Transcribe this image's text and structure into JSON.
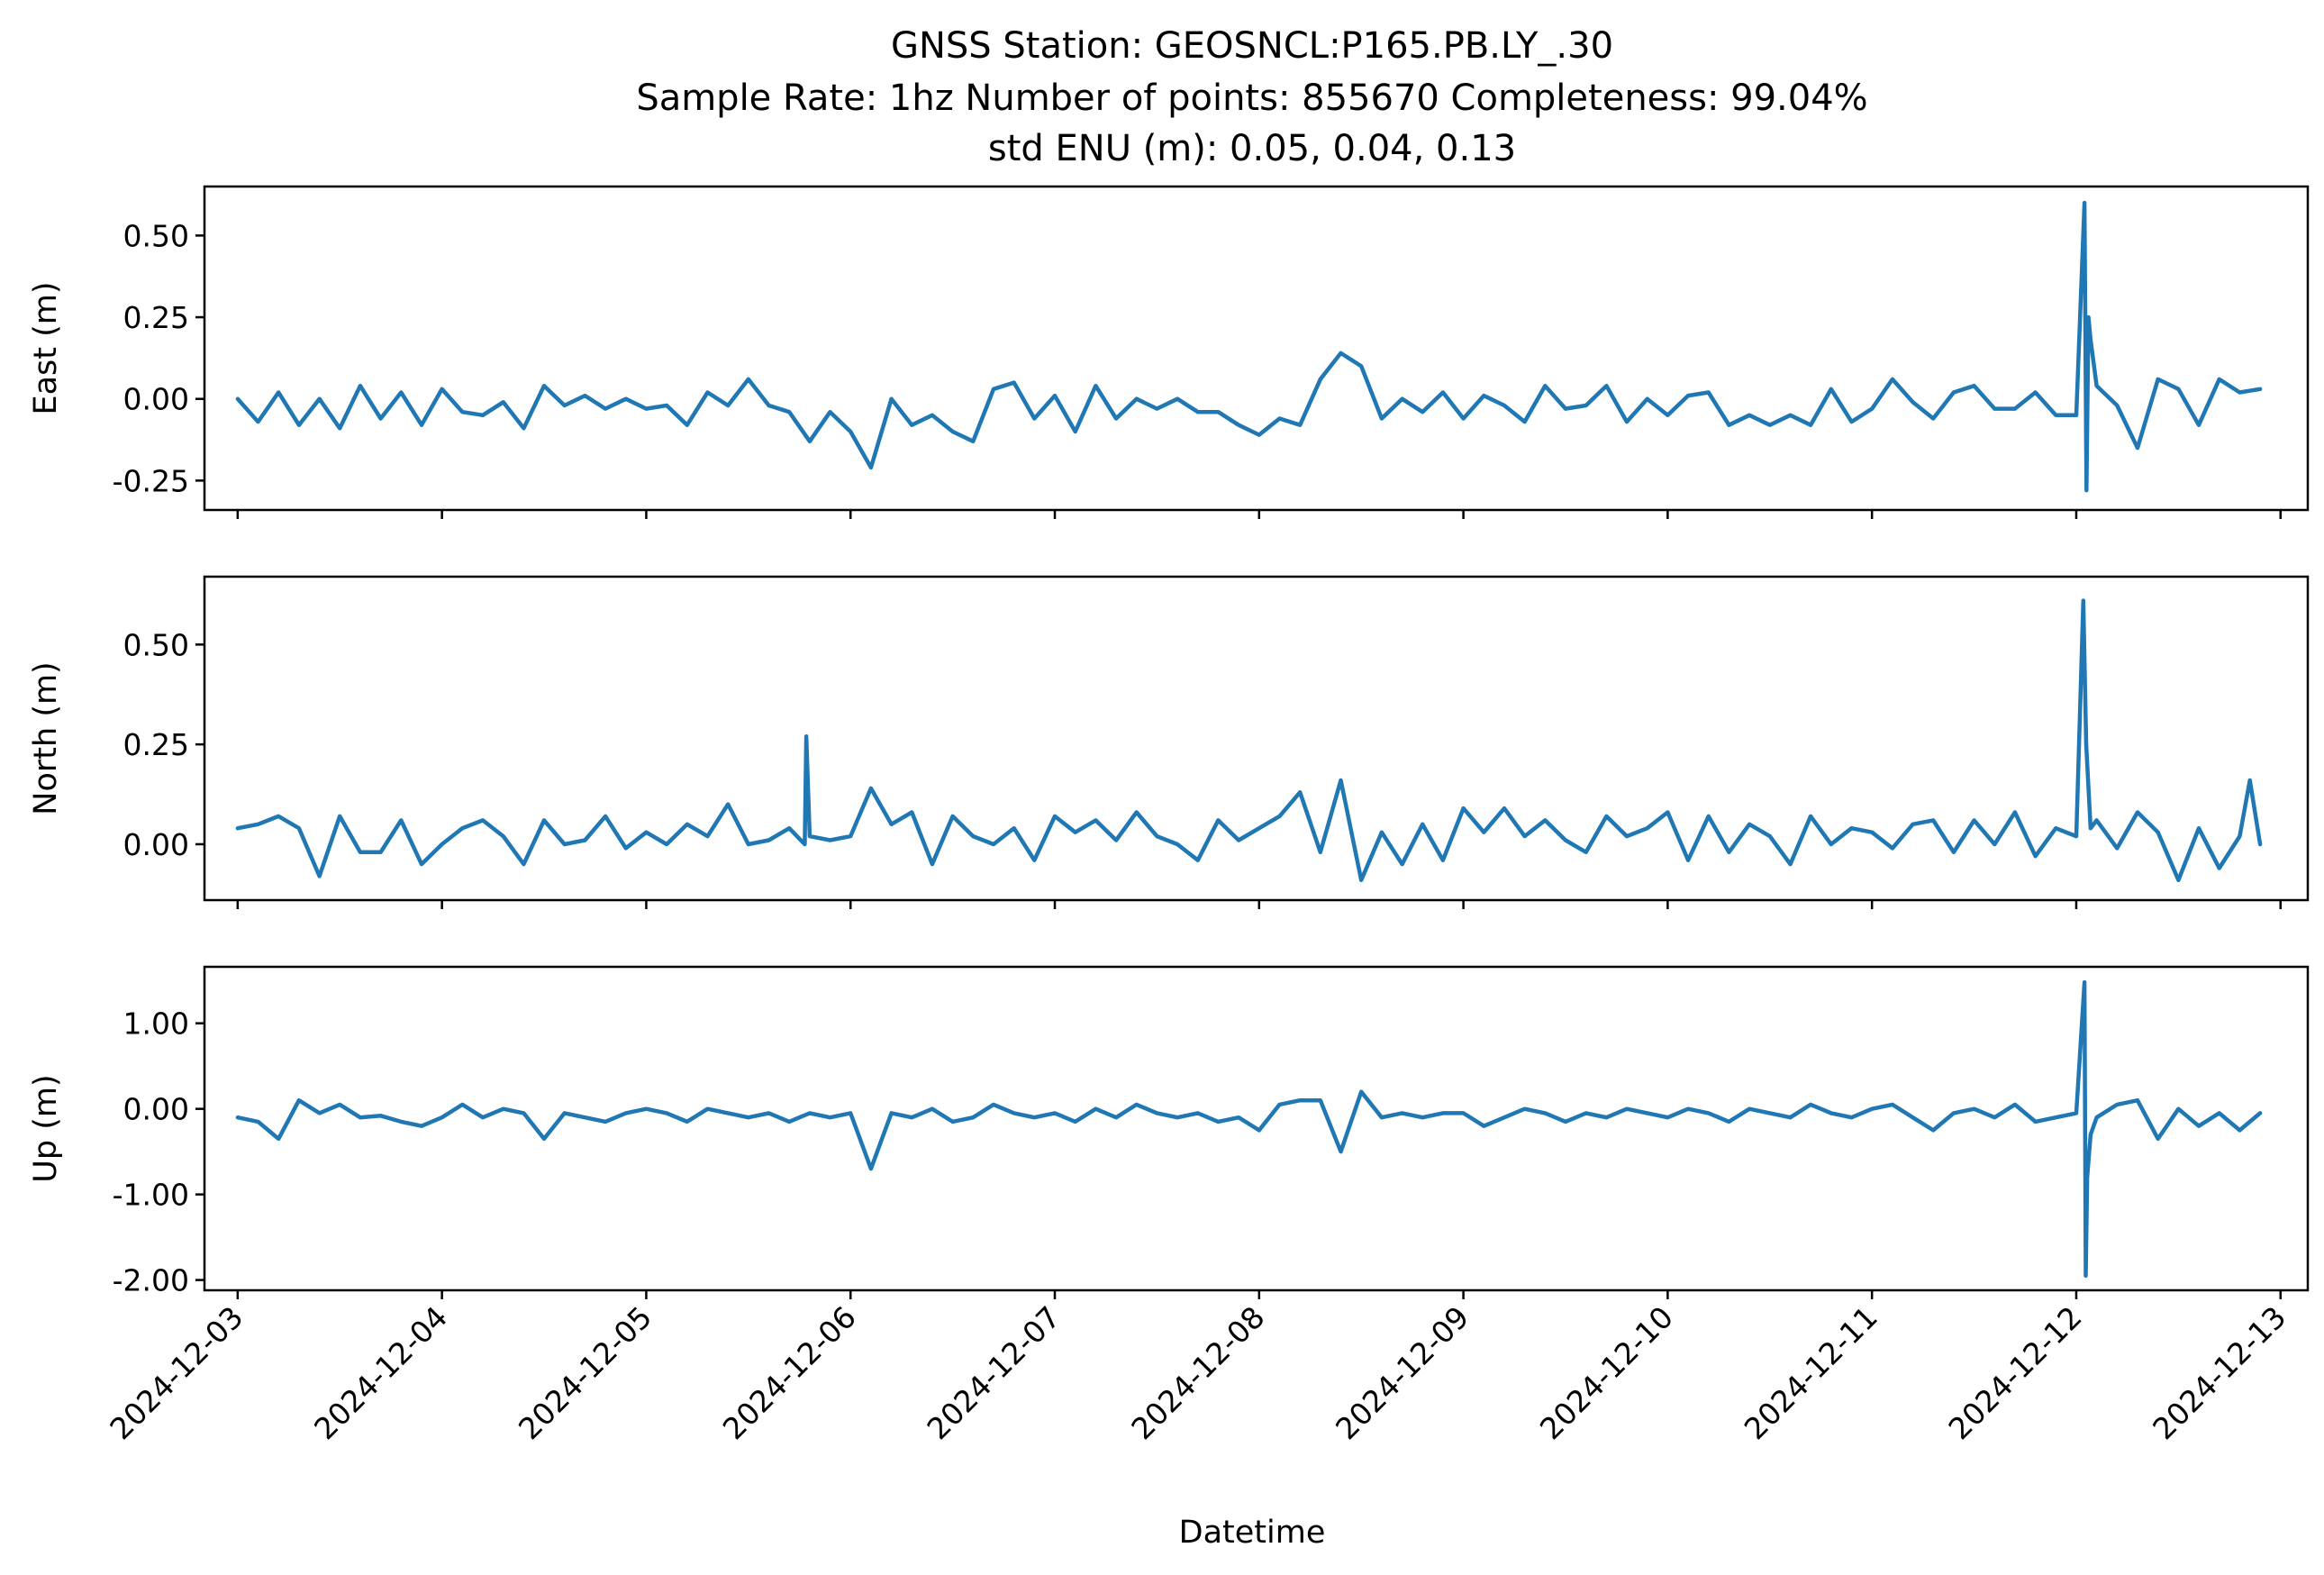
{
  "title": {
    "line1": "GNSS Station: GEOSNCL:P165.PB.LY_.30",
    "line2": "Sample Rate: 1hz   Number of points: 855670    Completeness:  99.04%",
    "line3": "std ENU (m):  0.05, 0.04, 0.13"
  },
  "chart_data": [
    {
      "type": "line",
      "ylabel": "East (m)",
      "xlabel": "",
      "xlim": [
        "2024-12-02T20:06",
        "2024-12-13T03:12"
      ],
      "ylim": [
        -0.34,
        0.65
      ],
      "yticks": [
        0.5,
        0.25,
        0.0,
        -0.25
      ],
      "ytick_labels": [
        "0.50",
        "0.25",
        "0.00",
        "-0.25"
      ],
      "color": "#1f77b4",
      "series": [
        {
          "x": [
            "2024-12-03T00:00",
            "2024-12-03T02:24",
            "2024-12-03T04:48",
            "2024-12-03T07:12",
            "2024-12-03T09:36",
            "2024-12-03T12:00",
            "2024-12-03T14:24",
            "2024-12-03T16:48",
            "2024-12-03T19:12",
            "2024-12-03T21:36",
            "2024-12-04T00:00",
            "2024-12-04T02:24",
            "2024-12-04T04:48",
            "2024-12-04T07:12",
            "2024-12-04T09:36",
            "2024-12-04T12:00",
            "2024-12-04T14:24",
            "2024-12-04T16:48",
            "2024-12-04T19:12",
            "2024-12-04T21:36",
            "2024-12-05T00:00",
            "2024-12-05T02:24",
            "2024-12-05T04:48",
            "2024-12-05T07:12",
            "2024-12-05T09:36",
            "2024-12-05T12:00",
            "2024-12-05T14:24",
            "2024-12-05T16:48",
            "2024-12-05T19:12",
            "2024-12-05T21:36",
            "2024-12-06T00:00",
            "2024-12-06T02:24",
            "2024-12-06T04:48",
            "2024-12-06T07:12",
            "2024-12-06T09:36",
            "2024-12-06T12:00",
            "2024-12-06T14:24",
            "2024-12-06T16:48",
            "2024-12-06T19:12",
            "2024-12-06T21:36",
            "2024-12-07T00:00",
            "2024-12-07T02:24",
            "2024-12-07T04:48",
            "2024-12-07T07:12",
            "2024-12-07T09:36",
            "2024-12-07T12:00",
            "2024-12-07T14:24",
            "2024-12-07T16:48",
            "2024-12-07T19:12",
            "2024-12-07T21:36",
            "2024-12-08T00:00",
            "2024-12-08T02:24",
            "2024-12-08T04:48",
            "2024-12-08T07:12",
            "2024-12-08T09:36",
            "2024-12-08T12:00",
            "2024-12-08T14:24",
            "2024-12-08T16:48",
            "2024-12-08T19:12",
            "2024-12-08T21:36",
            "2024-12-09T00:00",
            "2024-12-09T02:24",
            "2024-12-09T04:48",
            "2024-12-09T07:12",
            "2024-12-09T09:36",
            "2024-12-09T12:00",
            "2024-12-09T14:24",
            "2024-12-09T16:48",
            "2024-12-09T19:12",
            "2024-12-09T21:36",
            "2024-12-10T00:00",
            "2024-12-10T02:24",
            "2024-12-10T04:48",
            "2024-12-10T07:12",
            "2024-12-10T09:36",
            "2024-12-10T12:00",
            "2024-12-10T14:24",
            "2024-12-10T16:48",
            "2024-12-10T19:12",
            "2024-12-10T21:36",
            "2024-12-11T00:00",
            "2024-12-11T02:24",
            "2024-12-11T04:48",
            "2024-12-11T07:12",
            "2024-12-11T09:36",
            "2024-12-11T12:00",
            "2024-12-11T14:24",
            "2024-12-11T16:48",
            "2024-12-11T19:12",
            "2024-12-11T21:36",
            "2024-12-12T00:00",
            "2024-12-12T00:58",
            "2024-12-12T01:12",
            "2024-12-12T01:26",
            "2024-12-12T01:41",
            "2024-12-12T02:24",
            "2024-12-12T04:48",
            "2024-12-12T07:12",
            "2024-12-12T09:36",
            "2024-12-12T12:00",
            "2024-12-12T14:24",
            "2024-12-12T16:48",
            "2024-12-12T19:12",
            "2024-12-12T21:36"
          ],
          "y": [
            0.0,
            -0.07,
            0.02,
            -0.08,
            0.0,
            -0.09,
            0.04,
            -0.06,
            0.02,
            -0.08,
            0.03,
            -0.04,
            -0.05,
            -0.01,
            -0.09,
            0.04,
            -0.02,
            0.01,
            -0.03,
            0.0,
            -0.03,
            -0.02,
            -0.08,
            0.02,
            -0.02,
            0.06,
            -0.02,
            -0.04,
            -0.13,
            -0.04,
            -0.1,
            -0.21,
            0.0,
            -0.08,
            -0.05,
            -0.1,
            -0.13,
            0.03,
            0.05,
            -0.06,
            0.01,
            -0.1,
            0.04,
            -0.06,
            0.0,
            -0.03,
            0.0,
            -0.04,
            -0.04,
            -0.08,
            -0.11,
            -0.06,
            -0.08,
            0.06,
            0.14,
            0.1,
            -0.06,
            0.0,
            -0.04,
            0.02,
            -0.06,
            0.01,
            -0.02,
            -0.07,
            0.04,
            -0.03,
            -0.02,
            0.04,
            -0.07,
            0.0,
            -0.05,
            0.01,
            0.02,
            -0.08,
            -0.05,
            -0.08,
            -0.05,
            -0.08,
            0.03,
            -0.07,
            -0.03,
            0.06,
            -0.01,
            -0.06,
            0.02,
            0.04,
            -0.03,
            -0.03,
            0.02,
            -0.05,
            -0.05,
            0.6,
            -0.28,
            0.25,
            0.18,
            0.04,
            -0.02,
            -0.15,
            0.06,
            0.03,
            -0.08,
            0.06,
            0.02,
            0.03
          ]
        }
      ]
    },
    {
      "type": "line",
      "ylabel": "North (m)",
      "xlabel": "",
      "xlim": [
        "2024-12-02T20:06",
        "2024-12-13T03:12"
      ],
      "ylim": [
        -0.14,
        0.67
      ],
      "yticks": [
        0.5,
        0.25,
        0.0
      ],
      "ytick_labels": [
        "0.50",
        "0.25",
        "0.00"
      ],
      "color": "#1f77b4",
      "series": [
        {
          "x": [
            "2024-12-03T00:00",
            "2024-12-03T02:24",
            "2024-12-03T04:48",
            "2024-12-03T07:12",
            "2024-12-03T09:36",
            "2024-12-03T12:00",
            "2024-12-03T14:24",
            "2024-12-03T16:48",
            "2024-12-03T19:12",
            "2024-12-03T21:36",
            "2024-12-04T00:00",
            "2024-12-04T02:24",
            "2024-12-04T04:48",
            "2024-12-04T07:12",
            "2024-12-04T09:36",
            "2024-12-04T12:00",
            "2024-12-04T14:24",
            "2024-12-04T16:48",
            "2024-12-04T19:12",
            "2024-12-04T21:36",
            "2024-12-05T00:00",
            "2024-12-05T02:24",
            "2024-12-05T04:48",
            "2024-12-05T07:12",
            "2024-12-05T09:36",
            "2024-12-05T12:00",
            "2024-12-05T14:24",
            "2024-12-05T16:48",
            "2024-12-05T18:37",
            "2024-12-05T18:48",
            "2024-12-05T19:12",
            "2024-12-05T21:36",
            "2024-12-06T00:00",
            "2024-12-06T02:24",
            "2024-12-06T04:48",
            "2024-12-06T07:12",
            "2024-12-06T09:36",
            "2024-12-06T12:00",
            "2024-12-06T14:24",
            "2024-12-06T16:48",
            "2024-12-06T19:12",
            "2024-12-06T21:36",
            "2024-12-07T00:00",
            "2024-12-07T02:24",
            "2024-12-07T04:48",
            "2024-12-07T07:12",
            "2024-12-07T09:36",
            "2024-12-07T12:00",
            "2024-12-07T14:24",
            "2024-12-07T16:48",
            "2024-12-07T19:12",
            "2024-12-07T21:36",
            "2024-12-08T00:00",
            "2024-12-08T02:24",
            "2024-12-08T04:48",
            "2024-12-08T07:12",
            "2024-12-08T09:36",
            "2024-12-08T12:00",
            "2024-12-08T14:24",
            "2024-12-08T16:48",
            "2024-12-08T19:12",
            "2024-12-08T21:36",
            "2024-12-09T00:00",
            "2024-12-09T02:24",
            "2024-12-09T04:48",
            "2024-12-09T07:12",
            "2024-12-09T09:36",
            "2024-12-09T12:00",
            "2024-12-09T14:24",
            "2024-12-09T16:48",
            "2024-12-09T19:12",
            "2024-12-09T21:36",
            "2024-12-10T00:00",
            "2024-12-10T02:24",
            "2024-12-10T04:48",
            "2024-12-10T07:12",
            "2024-12-10T09:36",
            "2024-12-10T12:00",
            "2024-12-10T14:24",
            "2024-12-10T16:48",
            "2024-12-10T19:12",
            "2024-12-10T21:36",
            "2024-12-11T00:00",
            "2024-12-11T02:24",
            "2024-12-11T04:48",
            "2024-12-11T07:12",
            "2024-12-11T09:36",
            "2024-12-11T12:00",
            "2024-12-11T14:24",
            "2024-12-11T16:48",
            "2024-12-11T19:12",
            "2024-12-11T21:36",
            "2024-12-12T00:00",
            "2024-12-12T00:50",
            "2024-12-12T01:10",
            "2024-12-12T01:41",
            "2024-12-12T02:24",
            "2024-12-12T04:48",
            "2024-12-12T07:12",
            "2024-12-12T09:36",
            "2024-12-12T12:00",
            "2024-12-12T14:24",
            "2024-12-12T16:48",
            "2024-12-12T19:12",
            "2024-12-12T20:24",
            "2024-12-12T21:36"
          ],
          "y": [
            0.04,
            0.05,
            0.07,
            0.04,
            -0.08,
            0.07,
            -0.02,
            -0.02,
            0.06,
            -0.05,
            0.0,
            0.04,
            0.06,
            0.02,
            -0.05,
            0.06,
            0.0,
            0.01,
            0.07,
            -0.01,
            0.03,
            0.0,
            0.05,
            0.02,
            0.1,
            0.0,
            0.01,
            0.04,
            0.0,
            0.27,
            0.02,
            0.01,
            0.02,
            0.14,
            0.05,
            0.08,
            -0.05,
            0.07,
            0.02,
            0.0,
            0.04,
            -0.04,
            0.07,
            0.03,
            0.06,
            0.01,
            0.08,
            0.02,
            0.0,
            -0.04,
            0.06,
            0.01,
            0.04,
            0.07,
            0.13,
            -0.02,
            0.16,
            -0.09,
            0.03,
            -0.05,
            0.05,
            -0.04,
            0.09,
            0.03,
            0.09,
            0.02,
            0.06,
            0.01,
            -0.02,
            0.07,
            0.02,
            0.04,
            0.08,
            -0.04,
            0.07,
            -0.02,
            0.05,
            0.02,
            -0.05,
            0.07,
            0.0,
            0.04,
            0.03,
            -0.01,
            0.05,
            0.06,
            -0.02,
            0.06,
            0.0,
            0.08,
            -0.03,
            0.04,
            0.02,
            0.61,
            0.25,
            0.04,
            0.06,
            -0.01,
            0.08,
            0.03,
            -0.09,
            0.04,
            -0.06,
            0.02,
            0.16,
            0.0
          ]
        }
      ]
    },
    {
      "type": "line",
      "ylabel": "Up (m)",
      "xlabel": "Datetime",
      "xlim": [
        "2024-12-02T20:06",
        "2024-12-13T03:12"
      ],
      "ylim": [
        -2.12,
        1.66
      ],
      "yticks": [
        1.0,
        0.0,
        -1.0,
        -2.0
      ],
      "ytick_labels": [
        "1.00",
        "0.00",
        "-1.00",
        "-2.00"
      ],
      "xticks": [
        "2024-12-03",
        "2024-12-04",
        "2024-12-05",
        "2024-12-06",
        "2024-12-07",
        "2024-12-08",
        "2024-12-09",
        "2024-12-10",
        "2024-12-11",
        "2024-12-12",
        "2024-12-13"
      ],
      "color": "#1f77b4",
      "series": [
        {
          "x": [
            "2024-12-03T00:00",
            "2024-12-03T02:24",
            "2024-12-03T04:48",
            "2024-12-03T07:12",
            "2024-12-03T09:36",
            "2024-12-03T12:00",
            "2024-12-03T14:24",
            "2024-12-03T16:48",
            "2024-12-03T19:12",
            "2024-12-03T21:36",
            "2024-12-04T00:00",
            "2024-12-04T02:24",
            "2024-12-04T04:48",
            "2024-12-04T07:12",
            "2024-12-04T09:36",
            "2024-12-04T12:00",
            "2024-12-04T14:24",
            "2024-12-04T16:48",
            "2024-12-04T19:12",
            "2024-12-04T21:36",
            "2024-12-05T00:00",
            "2024-12-05T02:24",
            "2024-12-05T04:48",
            "2024-12-05T07:12",
            "2024-12-05T09:36",
            "2024-12-05T12:00",
            "2024-12-05T14:24",
            "2024-12-05T16:48",
            "2024-12-05T19:12",
            "2024-12-05T21:36",
            "2024-12-06T00:00",
            "2024-12-06T02:24",
            "2024-12-06T04:48",
            "2024-12-06T07:12",
            "2024-12-06T09:36",
            "2024-12-06T12:00",
            "2024-12-06T14:24",
            "2024-12-06T16:48",
            "2024-12-06T19:12",
            "2024-12-06T21:36",
            "2024-12-07T00:00",
            "2024-12-07T02:24",
            "2024-12-07T04:48",
            "2024-12-07T07:12",
            "2024-12-07T09:36",
            "2024-12-07T12:00",
            "2024-12-07T14:24",
            "2024-12-07T16:48",
            "2024-12-07T19:12",
            "2024-12-07T21:36",
            "2024-12-08T00:00",
            "2024-12-08T02:24",
            "2024-12-08T04:48",
            "2024-12-08T07:12",
            "2024-12-08T09:36",
            "2024-12-08T12:00",
            "2024-12-08T14:24",
            "2024-12-08T16:48",
            "2024-12-08T19:12",
            "2024-12-08T21:36",
            "2024-12-09T00:00",
            "2024-12-09T02:24",
            "2024-12-09T04:48",
            "2024-12-09T07:12",
            "2024-12-09T09:36",
            "2024-12-09T12:00",
            "2024-12-09T14:24",
            "2024-12-09T16:48",
            "2024-12-09T19:12",
            "2024-12-09T21:36",
            "2024-12-10T00:00",
            "2024-12-10T02:24",
            "2024-12-10T04:48",
            "2024-12-10T07:12",
            "2024-12-10T09:36",
            "2024-12-10T12:00",
            "2024-12-10T14:24",
            "2024-12-10T16:48",
            "2024-12-10T19:12",
            "2024-12-10T21:36",
            "2024-12-11T00:00",
            "2024-12-11T02:24",
            "2024-12-11T04:48",
            "2024-12-11T07:12",
            "2024-12-11T09:36",
            "2024-12-11T12:00",
            "2024-12-11T14:24",
            "2024-12-11T16:48",
            "2024-12-11T19:12",
            "2024-12-11T21:36",
            "2024-12-12T00:00",
            "2024-12-12T00:58",
            "2024-12-12T01:07",
            "2024-12-12T01:17",
            "2024-12-12T01:41",
            "2024-12-12T02:24",
            "2024-12-12T04:48",
            "2024-12-12T07:12",
            "2024-12-12T09:36",
            "2024-12-12T12:00",
            "2024-12-12T14:24",
            "2024-12-12T16:48",
            "2024-12-12T19:12",
            "2024-12-12T21:36"
          ],
          "y": [
            -0.1,
            -0.15,
            -0.35,
            0.1,
            -0.05,
            0.05,
            -0.1,
            -0.08,
            -0.15,
            -0.2,
            -0.1,
            0.05,
            -0.1,
            0.0,
            -0.05,
            -0.35,
            -0.05,
            -0.1,
            -0.15,
            -0.05,
            0.0,
            -0.05,
            -0.15,
            0.0,
            -0.05,
            -0.1,
            -0.05,
            -0.15,
            -0.05,
            -0.1,
            -0.05,
            -0.7,
            -0.05,
            -0.1,
            0.0,
            -0.15,
            -0.1,
            0.05,
            -0.05,
            -0.1,
            -0.05,
            -0.15,
            0.0,
            -0.1,
            0.05,
            -0.05,
            -0.1,
            -0.05,
            -0.15,
            -0.1,
            -0.25,
            0.05,
            0.1,
            0.1,
            -0.5,
            0.2,
            -0.1,
            -0.05,
            -0.1,
            -0.05,
            -0.05,
            -0.2,
            -0.1,
            0.0,
            -0.05,
            -0.15,
            -0.05,
            -0.1,
            0.0,
            -0.05,
            -0.1,
            0.0,
            -0.05,
            -0.15,
            0.0,
            -0.05,
            -0.1,
            0.05,
            -0.05,
            -0.1,
            0.0,
            0.05,
            -0.1,
            -0.25,
            -0.05,
            0.0,
            -0.1,
            0.05,
            -0.15,
            -0.1,
            -0.05,
            1.48,
            -1.95,
            -0.8,
            -0.3,
            -0.1,
            0.05,
            0.1,
            -0.35,
            0.0,
            -0.2,
            -0.05,
            -0.25,
            -0.05
          ]
        }
      ]
    }
  ]
}
